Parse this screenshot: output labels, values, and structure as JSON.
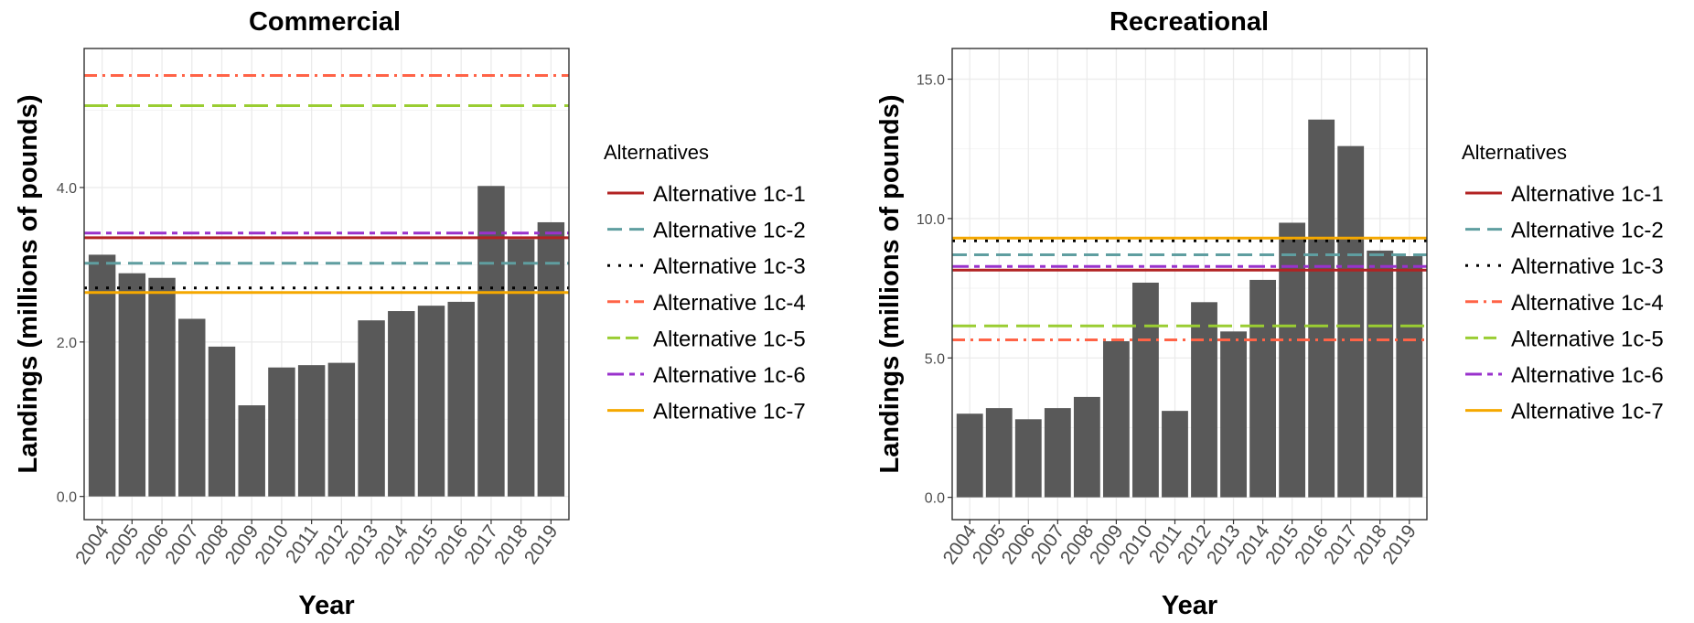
{
  "legend": {
    "title": "Alternatives",
    "entries": [
      {
        "label": "Alternative 1c-1",
        "color": "#b22222",
        "dash": "solid"
      },
      {
        "label": "Alternative 1c-2",
        "color": "#5f9ea0",
        "dash": "dashed"
      },
      {
        "label": "Alternative 1c-3",
        "color": "#000000",
        "dash": "dotted"
      },
      {
        "label": "Alternative 1c-4",
        "color": "#ff6347",
        "dash": "dotdash"
      },
      {
        "label": "Alternative 1c-5",
        "color": "#9acd32",
        "dash": "longdash"
      },
      {
        "label": "Alternative 1c-6",
        "color": "#9932cc",
        "dash": "twodash"
      },
      {
        "label": "Alternative 1c-7",
        "color": "#f5a800",
        "dash": "solid"
      }
    ]
  },
  "chart_data": [
    {
      "type": "bar",
      "title": "Commercial",
      "xlabel": "Year",
      "ylabel": "Landings (millions of pounds)",
      "categories": [
        "2004",
        "2005",
        "2006",
        "2007",
        "2008",
        "2009",
        "2010",
        "2011",
        "2012",
        "2013",
        "2014",
        "2015",
        "2016",
        "2017",
        "2018",
        "2019"
      ],
      "values": [
        3.13,
        2.89,
        2.83,
        2.3,
        1.94,
        1.18,
        1.67,
        1.7,
        1.73,
        2.28,
        2.4,
        2.47,
        2.52,
        4.02,
        3.33,
        3.55
      ],
      "yticks": [
        0.0,
        2.0,
        4.0
      ],
      "ytick_labels": [
        "0.0",
        "2.0",
        "4.0"
      ],
      "ylim": [
        -0.3,
        5.8
      ],
      "bar_color": "#595959",
      "grid": true,
      "reference_lines": [
        {
          "name": "Alternative 1c-1",
          "value": 3.35
        },
        {
          "name": "Alternative 1c-2",
          "value": 3.02
        },
        {
          "name": "Alternative 1c-3",
          "value": 2.7
        },
        {
          "name": "Alternative 1c-4",
          "value": 5.45
        },
        {
          "name": "Alternative 1c-5",
          "value": 5.06
        },
        {
          "name": "Alternative 1c-6",
          "value": 3.41
        },
        {
          "name": "Alternative 1c-7",
          "value": 2.64
        }
      ],
      "legend_position": "right"
    },
    {
      "type": "bar",
      "title": "Recreational",
      "xlabel": "Year",
      "ylabel": "Landings (millions of pounds)",
      "categories": [
        "2004",
        "2005",
        "2006",
        "2007",
        "2008",
        "2009",
        "2010",
        "2011",
        "2012",
        "2013",
        "2014",
        "2015",
        "2016",
        "2017",
        "2018",
        "2019"
      ],
      "values": [
        3.0,
        3.2,
        2.8,
        3.2,
        3.6,
        5.6,
        7.7,
        3.1,
        7.0,
        5.95,
        7.8,
        9.85,
        13.55,
        12.6,
        8.85,
        8.65
      ],
      "yticks": [
        0.0,
        5.0,
        10.0,
        15.0
      ],
      "ytick_labels": [
        "0.0",
        "5.0",
        "10.0",
        "15.0"
      ],
      "ylim": [
        -0.8,
        16.1
      ],
      "bar_color": "#595959",
      "grid": true,
      "reference_lines": [
        {
          "name": "Alternative 1c-1",
          "value": 8.15
        },
        {
          "name": "Alternative 1c-2",
          "value": 8.7
        },
        {
          "name": "Alternative 1c-3",
          "value": 9.2
        },
        {
          "name": "Alternative 1c-4",
          "value": 5.65
        },
        {
          "name": "Alternative 1c-5",
          "value": 6.15
        },
        {
          "name": "Alternative 1c-6",
          "value": 8.28
        },
        {
          "name": "Alternative 1c-7",
          "value": 9.3
        }
      ],
      "legend_position": "right"
    }
  ]
}
